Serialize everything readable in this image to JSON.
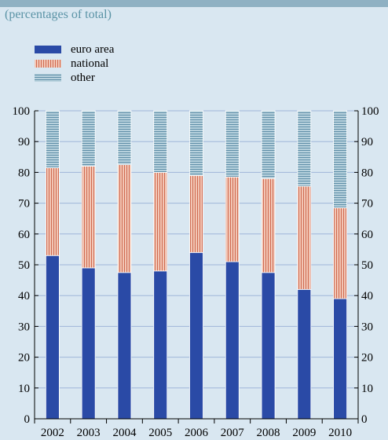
{
  "subtitle": "(percentages of total)",
  "legend": [
    {
      "label": "euro area",
      "key": "euro"
    },
    {
      "label": "national",
      "key": "national"
    },
    {
      "label": "other",
      "key": "other"
    }
  ],
  "colors": {
    "background": "#d9e7f1",
    "euro_area": "#2a4aa6",
    "national_light": "#f2c6b5",
    "national_dark": "#cf6a50",
    "other_light": "#b7d1dd",
    "other_dark": "#5f8fa8",
    "gridline": "#9fb6d9"
  },
  "chart_data": {
    "type": "bar",
    "stacked": true,
    "title": "",
    "subtitle": "(percentages of total)",
    "xlabel": "",
    "ylabel": "",
    "ylim": [
      0,
      100
    ],
    "yticks": [
      "0",
      "10",
      "20",
      "30",
      "40",
      "50",
      "60",
      "70",
      "80",
      "90",
      "100"
    ],
    "categories": [
      "2002",
      "2003",
      "2004",
      "2005",
      "2006",
      "2007",
      "2008",
      "2009",
      "2010"
    ],
    "series": [
      {
        "name": "euro area",
        "values": [
          53,
          49,
          47.5,
          48,
          54,
          51,
          47.5,
          42,
          39
        ]
      },
      {
        "name": "national",
        "values": [
          28.5,
          33,
          35,
          32,
          25,
          27.5,
          30.5,
          33.5,
          29.5
        ]
      },
      {
        "name": "other",
        "values": [
          18.5,
          18,
          17.5,
          20,
          21,
          21.5,
          22,
          24.5,
          31.5
        ]
      }
    ],
    "grid": true,
    "legend_position": "top-left"
  }
}
